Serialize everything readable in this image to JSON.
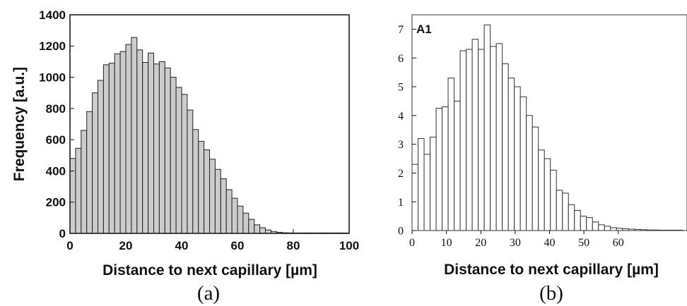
{
  "chart_data": [
    {
      "type": "bar",
      "caption": "(a)",
      "xlabel": "Distance to next capillary [µm]",
      "ylabel": "Frequency [a.u.]",
      "xlim": [
        0,
        100
      ],
      "ylim": [
        0,
        1400
      ],
      "xticks": [
        "0",
        "20",
        "40",
        "60",
        "80",
        "100"
      ],
      "yticks": [
        "0",
        "200",
        "400",
        "600",
        "800",
        "1000",
        "1200",
        "1400"
      ],
      "bin_width": 2,
      "bin_start": 0,
      "values": [
        480,
        545,
        660,
        780,
        900,
        980,
        1080,
        1090,
        1150,
        1165,
        1210,
        1255,
        1175,
        1095,
        1155,
        1085,
        1100,
        1060,
        1000,
        935,
        890,
        790,
        665,
        590,
        535,
        475,
        410,
        350,
        280,
        225,
        175,
        130,
        90,
        55,
        36,
        22,
        12,
        7,
        4,
        3,
        2,
        1,
        1,
        1,
        1,
        1,
        1,
        1,
        1,
        1
      ],
      "bar_fill": "#cccccc",
      "bar_stroke": "#222222"
    },
    {
      "type": "bar",
      "caption": "(b)",
      "panel_label": "A1",
      "xlabel": "Distance to next capillary [µm]",
      "ylabel": "",
      "xlim": [
        0,
        80
      ],
      "ylim": [
        0,
        7.5
      ],
      "xticks": [
        "0",
        "10",
        "20",
        "30",
        "40",
        "50",
        "60"
      ],
      "yticks": [
        "0",
        "1",
        "2",
        "3",
        "4",
        "5",
        "6",
        "7"
      ],
      "bin_width": 1.75,
      "bin_start": 0,
      "values": [
        2.3,
        3.2,
        2.65,
        3.25,
        4.25,
        4.3,
        5.3,
        4.5,
        6.25,
        6.3,
        6.65,
        6.3,
        7.15,
        6.4,
        6.5,
        5.8,
        5.3,
        5.0,
        4.65,
        4.0,
        3.6,
        2.8,
        2.5,
        2.1,
        1.4,
        1.3,
        0.9,
        0.7,
        0.5,
        0.45,
        0.3,
        0.2,
        0.15,
        0.1,
        0.08,
        0.06,
        0.05,
        0.04,
        0.03,
        0.02,
        0.02,
        0.01,
        0.01,
        0.01,
        0.01
      ],
      "bar_fill": "#ffffff",
      "bar_stroke": "#333333"
    }
  ]
}
